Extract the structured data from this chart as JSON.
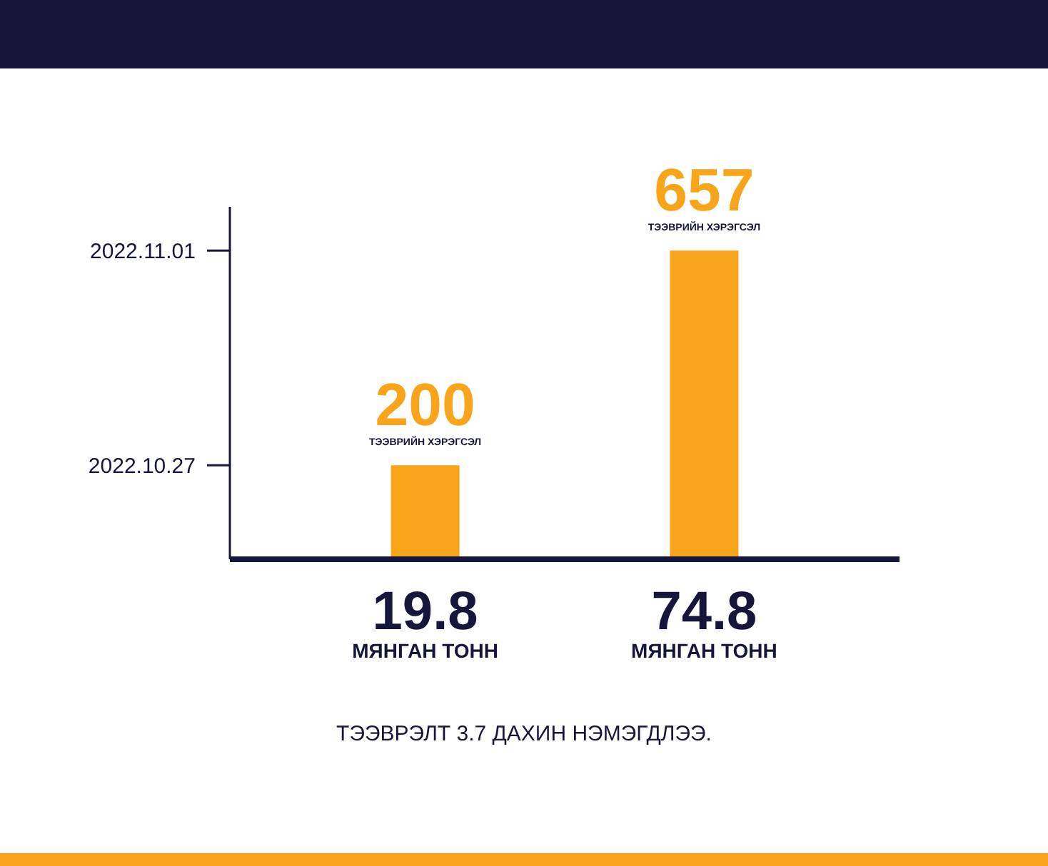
{
  "chart_data": {
    "type": "bar",
    "categories": [
      "19.8 МЯНГАН ТОНН",
      "74.8 МЯНГАН ТОНН"
    ],
    "values": [
      200,
      657
    ],
    "color": "#f9a51b",
    "data_labels": true,
    "ylim": [
      0,
      750
    ],
    "tick_labels": "x",
    "ref_lines": [
      {
        "axis": "y",
        "value": 200,
        "label": "2022.10.27"
      },
      {
        "axis": "y",
        "value": 657,
        "label": "2022.11.01"
      }
    ],
    "annotations": [
      {
        "text": "ТЭЭВРИЙН ХЭРЭГСЭЛ",
        "x": "19.8 МЯНГАН ТОНН",
        "y": 200
      },
      {
        "text": "ТЭЭВРИЙН ХЭРЭГСЭЛ",
        "x": "74.8 МЯНГАН ТОНН",
        "y": 657
      },
      "ТЭЭВРЭЛТ 3.7 ДАХИН НЭМЭГДЛЭЭ."
    ]
  }
}
